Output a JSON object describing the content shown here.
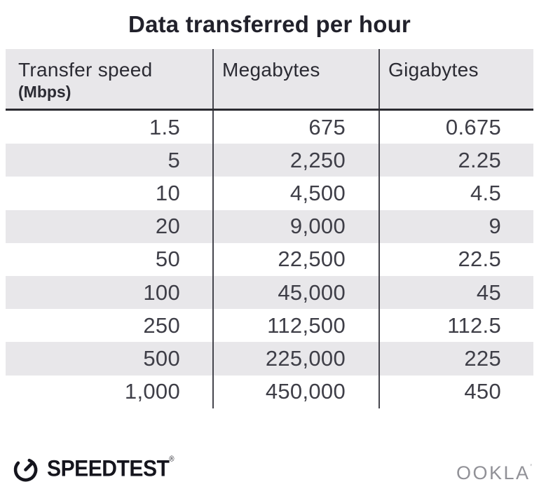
{
  "title": "Data transferred per hour",
  "table": {
    "columns": [
      {
        "label": "Transfer speed",
        "sublabel": "(Mbps)"
      },
      {
        "label": "Megabytes",
        "sublabel": ""
      },
      {
        "label": "Gigabytes",
        "sublabel": ""
      }
    ],
    "rows": [
      [
        "1.5",
        "675",
        "0.675"
      ],
      [
        "5",
        "2,250",
        "2.25"
      ],
      [
        "10",
        "4,500",
        "4.5"
      ],
      [
        "20",
        "9,000",
        "9"
      ],
      [
        "50",
        "22,500",
        "22.5"
      ],
      [
        "100",
        "45,000",
        "45"
      ],
      [
        "250",
        "112,500",
        "112.5"
      ],
      [
        "500",
        "225,000",
        "225"
      ],
      [
        "1,000",
        "450,000",
        "450"
      ]
    ]
  },
  "footer": {
    "speedtest_label": "SPEEDTEST",
    "speedtest_mark": "®",
    "ookla_label": "OOKLA",
    "ookla_mark": "’"
  },
  "colors": {
    "title_text": "#21212b",
    "header_text": "#2b2b33",
    "header_bg": "#e8e7ea",
    "header_border": "#2b2b31",
    "stripe": "#e8e7ea",
    "body_text": "#3e3e47",
    "divider": "#46464e",
    "logo_black": "#15151d",
    "ookla_gray": "#919197"
  },
  "chart_data": {
    "type": "table",
    "title": "Data transferred per hour",
    "columns": [
      "Transfer speed (Mbps)",
      "Megabytes",
      "Gigabytes"
    ],
    "rows": [
      [
        1.5,
        675,
        0.675
      ],
      [
        5,
        2250,
        2.25
      ],
      [
        10,
        4500,
        4.5
      ],
      [
        20,
        9000,
        9
      ],
      [
        50,
        22500,
        22.5
      ],
      [
        100,
        45000,
        45
      ],
      [
        250,
        112500,
        112.5
      ],
      [
        500,
        225000,
        225
      ],
      [
        1000,
        450000,
        450
      ]
    ]
  }
}
